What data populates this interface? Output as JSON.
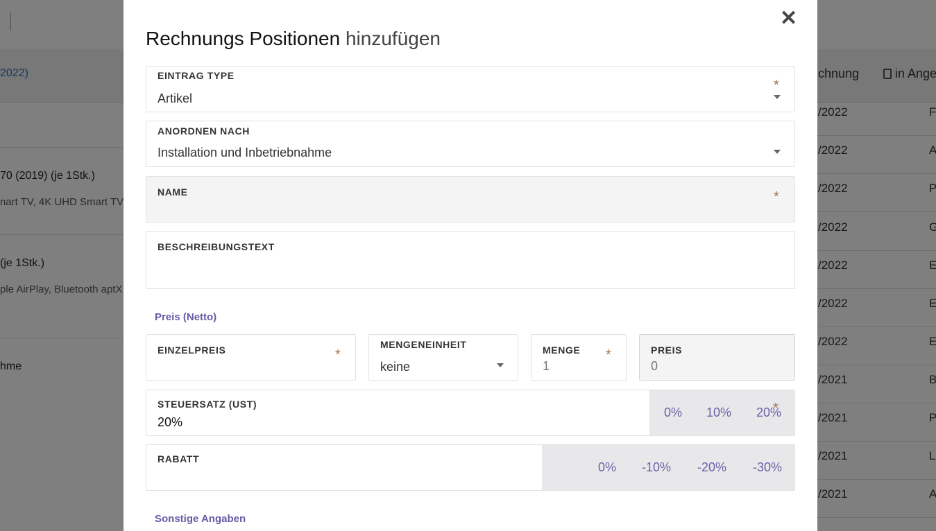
{
  "background": {
    "header_link": "2022)",
    "header_right_1": "chnung",
    "header_right_2": "in Ange",
    "left_rows": [
      {
        "title": "70 (2019) (je 1Stk.)",
        "subtitle": "nart TV, 4K UHD Smart TV,"
      },
      {
        "title": "(je 1Stk.)",
        "subtitle": "ple AirPlay, Bluetooth aptX"
      },
      {
        "title": "hme",
        "subtitle": ""
      }
    ],
    "right_rows": [
      {
        "date": "/2022",
        "letter": "F"
      },
      {
        "date": "/2022",
        "letter": "A"
      },
      {
        "date": "/2022",
        "letter": "P"
      },
      {
        "date": "/2022",
        "letter": "G"
      },
      {
        "date": "/2022",
        "letter": "E"
      },
      {
        "date": "/2022",
        "letter": "E"
      },
      {
        "date": "/2022",
        "letter": "E"
      },
      {
        "date": "/2021",
        "letter": "B"
      },
      {
        "date": "/2021",
        "letter": "P"
      },
      {
        "date": "/2021",
        "letter": "Li"
      },
      {
        "date": "/2021",
        "letter": "A"
      }
    ]
  },
  "modal": {
    "close_symbol": "✕",
    "title_strong": "Rechnungs Positionen",
    "title_light": "hinzufügen",
    "required_mark": "*",
    "fields": {
      "entry_type": {
        "label": "EINTRAG TYPE",
        "value": "Artikel"
      },
      "arrange_after": {
        "label": "ANORDNEN NACH",
        "value": "Installation und Inbetriebnahme"
      },
      "name": {
        "label": "NAME",
        "value": ""
      },
      "description": {
        "label": "BESCHREIBUNGSTEXT",
        "value": ""
      }
    },
    "price_section": "Preis (Netto)",
    "price": {
      "unit_price": {
        "label": "EINZELPREIS",
        "value": ""
      },
      "unit": {
        "label": "MENGENEINHEIT",
        "value": "keine"
      },
      "quantity": {
        "label": "MENGE",
        "value": "1"
      },
      "total": {
        "label": "PREIS",
        "value": "0"
      }
    },
    "tax": {
      "label": "STEUERSATZ (UST)",
      "value": "20%",
      "options": [
        "0%",
        "10%",
        "20%"
      ]
    },
    "discount": {
      "label": "RABATT",
      "value": "",
      "options": [
        "0%",
        "-10%",
        "-20%",
        "-30%"
      ]
    },
    "other_section": "Sonstige Angaben"
  }
}
